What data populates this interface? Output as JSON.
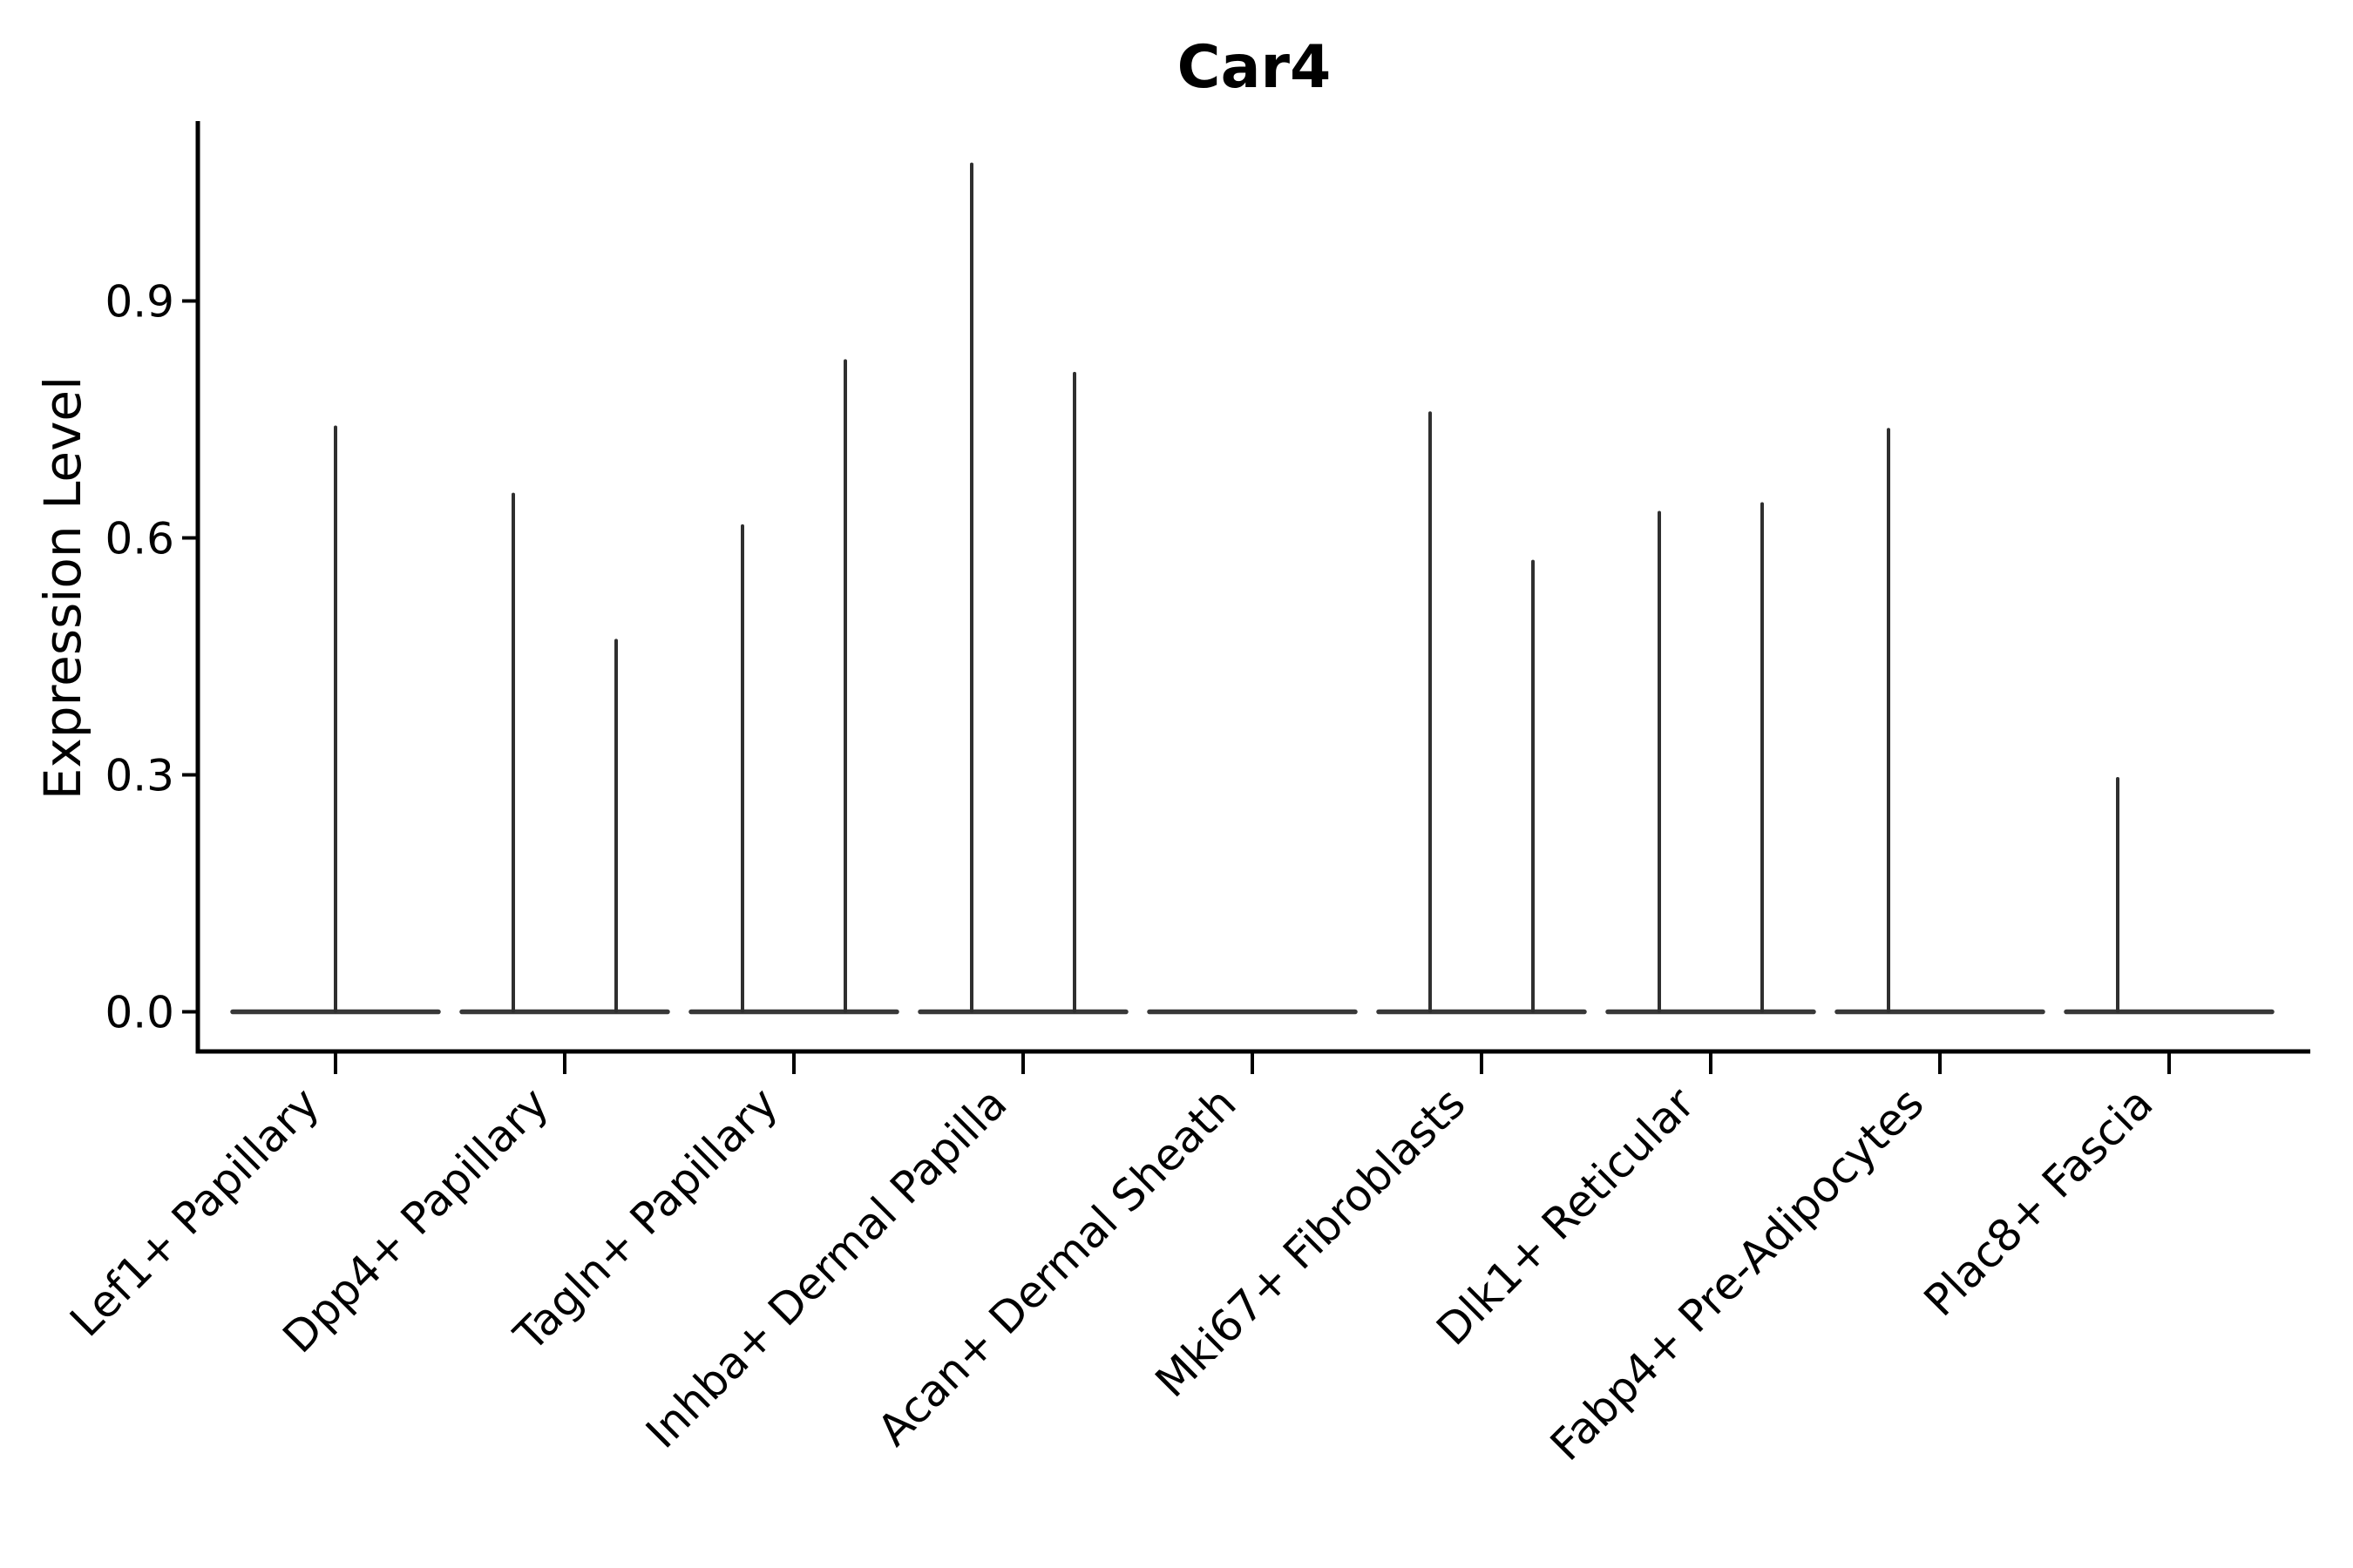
{
  "figure": {
    "background_color": "#ffffff",
    "axis_color": "#000000",
    "violin_line_color": "#2f2f2f",
    "baseline_color": "#383838"
  },
  "chart_data": {
    "type": "violin",
    "title": "Car4",
    "xlabel": "",
    "ylabel": "Expression Level",
    "grid": false,
    "legend": "none",
    "ylim": [
      0,
      1.126
    ],
    "yticks": [
      "0.0",
      "0.3",
      "0.6",
      "0.9"
    ],
    "ytick_values": [
      0.0,
      0.3,
      0.6,
      0.9
    ],
    "categories": [
      "Lef1+ Papillary",
      "Dpp4+ Papillary",
      "Tagln+ Papillary",
      "Inhba+ Dermal Papilla",
      "Acan+ Dermal Sheath",
      "Mki67+ Fibroblasts",
      "Dlk1+ Reticular",
      "Fabp4+ Pre-Adipocytes",
      "Plac8+ Fascia"
    ],
    "description": "Violin plot of Car4 expression per fibroblast cluster; each category shows a flat density bar at 0 expression, with up to two thin spikes (side-by-side split violins) rising to the maximum expression value.",
    "violins": [
      {
        "category": "Lef1+ Papillary",
        "baseline_at_zero": true,
        "spikes": [
          {
            "position": "center",
            "max_expression": 0.74
          }
        ]
      },
      {
        "category": "Dpp4+ Papillary",
        "baseline_at_zero": true,
        "spikes": [
          {
            "position": "left",
            "max_expression": 0.655
          },
          {
            "position": "right",
            "max_expression": 0.47
          }
        ]
      },
      {
        "category": "Tagln+ Papillary",
        "baseline_at_zero": true,
        "spikes": [
          {
            "position": "left",
            "max_expression": 0.615
          },
          {
            "position": "right",
            "max_expression": 0.824
          }
        ]
      },
      {
        "category": "Inhba+ Dermal Papilla",
        "baseline_at_zero": true,
        "spikes": [
          {
            "position": "left",
            "max_expression": 1.073
          },
          {
            "position": "right",
            "max_expression": 0.808
          }
        ]
      },
      {
        "category": "Acan+ Dermal Sheath",
        "baseline_at_zero": true,
        "spikes": []
      },
      {
        "category": "Mki67+ Fibroblasts",
        "baseline_at_zero": true,
        "spikes": [
          {
            "position": "left",
            "max_expression": 0.758
          },
          {
            "position": "right",
            "max_expression": 0.57
          }
        ]
      },
      {
        "category": "Dlk1+ Reticular",
        "baseline_at_zero": true,
        "spikes": [
          {
            "position": "left",
            "max_expression": 0.632
          },
          {
            "position": "right",
            "max_expression": 0.643
          }
        ]
      },
      {
        "category": "Fabp4+ Pre-Adipocytes",
        "baseline_at_zero": true,
        "spikes": [
          {
            "position": "left",
            "max_expression": 0.737
          }
        ]
      },
      {
        "category": "Plac8+ Fascia",
        "baseline_at_zero": true,
        "spikes": [
          {
            "position": "left",
            "max_expression": 0.295
          }
        ]
      }
    ]
  }
}
